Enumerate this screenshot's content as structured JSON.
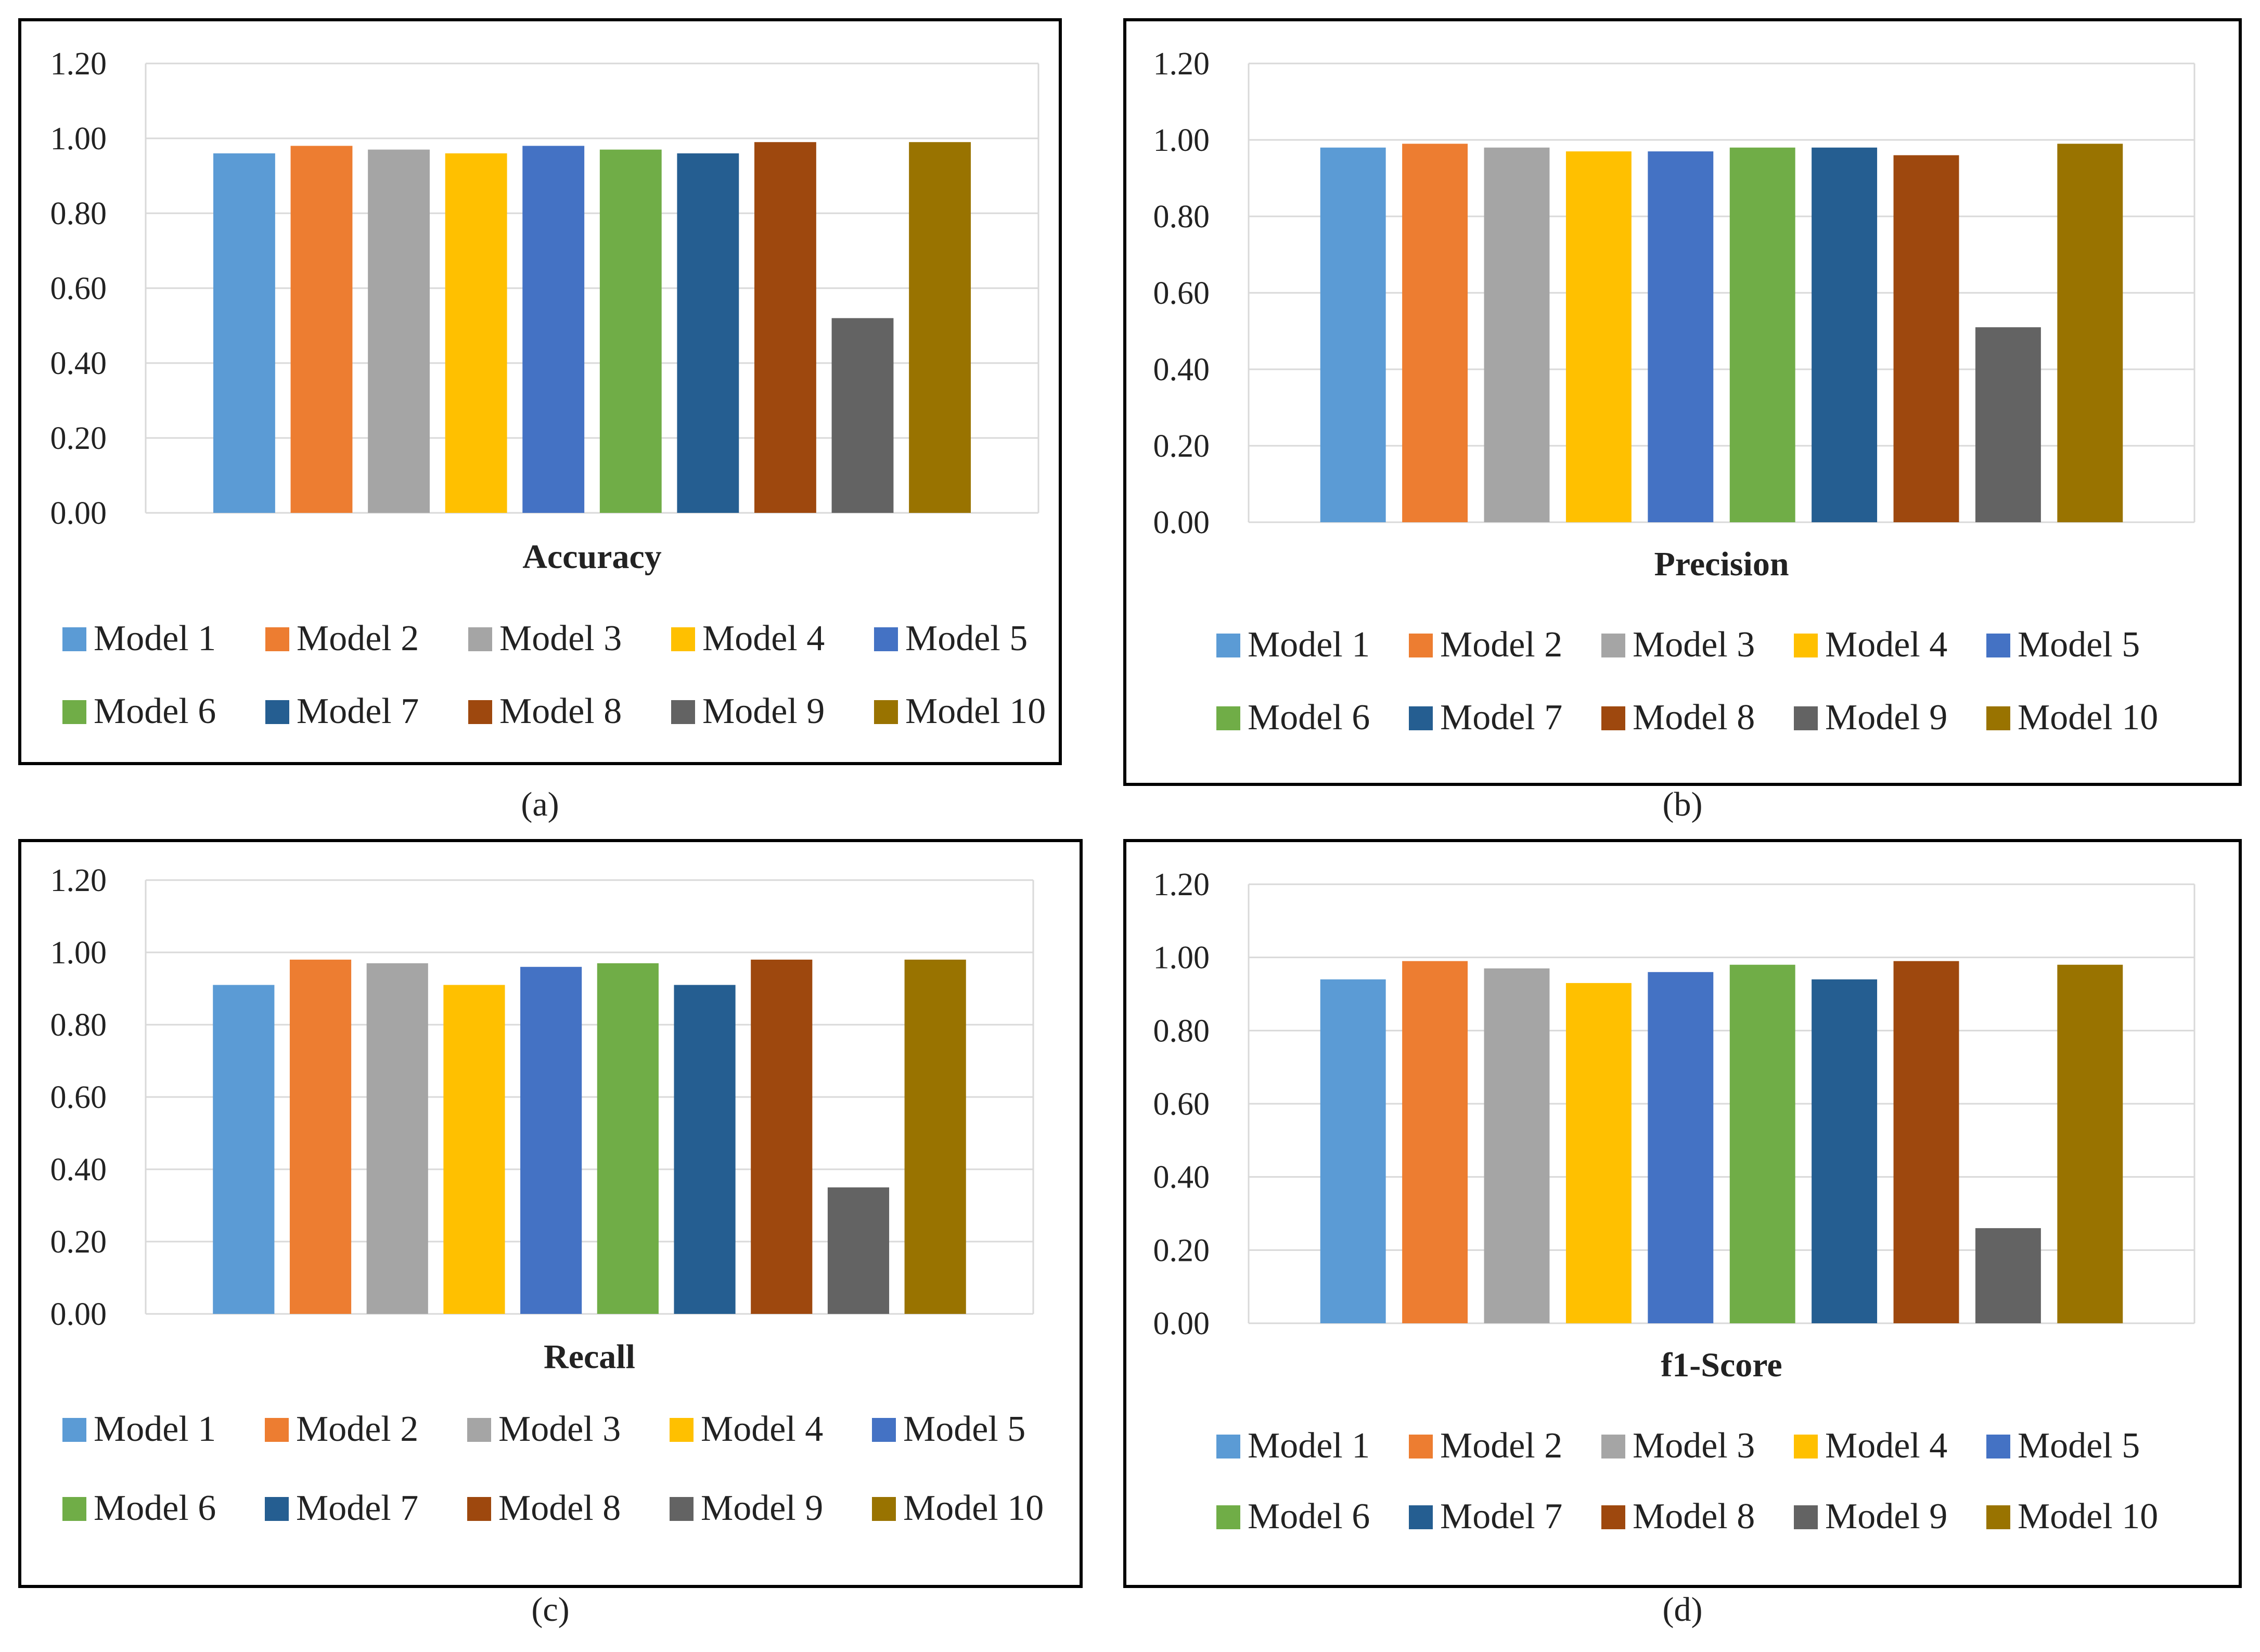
{
  "categories": [
    "Model 1",
    "Model 2",
    "Model 3",
    "Model 4",
    "Model 5",
    "Model 6",
    "Model 7",
    "Model 8",
    "Model 9",
    "Model 10"
  ],
  "colors": [
    "#5B9BD5",
    "#ED7D31",
    "#A5A5A5",
    "#FFC000",
    "#4472C4",
    "#70AD47",
    "#255E91",
    "#9E480E",
    "#636363",
    "#997300"
  ],
  "chart_data": [
    {
      "type": "bar",
      "title": "Accuracy",
      "panel": "(a)",
      "categories": [
        "Model 1",
        "Model 2",
        "Model 3",
        "Model 4",
        "Model 5",
        "Model 6",
        "Model 7",
        "Model 8",
        "Model 9",
        "Model 10"
      ],
      "values": [
        0.96,
        0.98,
        0.97,
        0.96,
        0.98,
        0.97,
        0.96,
        0.99,
        0.52,
        0.99
      ],
      "ylim": [
        0,
        1.2
      ],
      "yticks": [
        "0.00",
        "0.20",
        "0.40",
        "0.60",
        "0.80",
        "1.00",
        "1.20"
      ],
      "legend": "bottom"
    },
    {
      "type": "bar",
      "title": "Precision",
      "panel": "(b)",
      "categories": [
        "Model 1",
        "Model 2",
        "Model 3",
        "Model 4",
        "Model 5",
        "Model 6",
        "Model 7",
        "Model 8",
        "Model 9",
        "Model 10"
      ],
      "values": [
        0.98,
        0.99,
        0.98,
        0.97,
        0.97,
        0.98,
        0.98,
        0.96,
        0.51,
        0.99
      ],
      "ylim": [
        0,
        1.2
      ],
      "yticks": [
        "0.00",
        "0.20",
        "0.40",
        "0.60",
        "0.80",
        "1.00",
        "1.20"
      ],
      "legend": "bottom"
    },
    {
      "type": "bar",
      "title": "Recall",
      "panel": "(c)",
      "categories": [
        "Model 1",
        "Model 2",
        "Model 3",
        "Model 4",
        "Model 5",
        "Model 6",
        "Model 7",
        "Model 8",
        "Model 9",
        "Model 10"
      ],
      "values": [
        0.91,
        0.98,
        0.97,
        0.91,
        0.96,
        0.97,
        0.91,
        0.98,
        0.35,
        0.98
      ],
      "ylim": [
        0,
        1.2
      ],
      "yticks": [
        "0.00",
        "0.20",
        "0.40",
        "0.60",
        "0.80",
        "1.00",
        "1.20"
      ],
      "legend": "bottom"
    },
    {
      "type": "bar",
      "title": "f1-Score",
      "panel": "(d)",
      "categories": [
        "Model 1",
        "Model 2",
        "Model 3",
        "Model 4",
        "Model 5",
        "Model 6",
        "Model 7",
        "Model 8",
        "Model 9",
        "Model 10"
      ],
      "values": [
        0.94,
        0.99,
        0.97,
        0.93,
        0.96,
        0.98,
        0.94,
        0.99,
        0.26,
        0.98
      ],
      "ylim": [
        0,
        1.2
      ],
      "yticks": [
        "0.00",
        "0.20",
        "0.40",
        "0.60",
        "0.80",
        "1.00",
        "1.20"
      ],
      "legend": "bottom"
    }
  ]
}
